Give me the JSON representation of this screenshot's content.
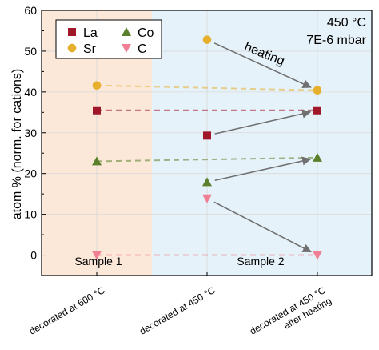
{
  "chart_data": {
    "type": "scatter",
    "ylabel": "atom % (norm. for cations)",
    "ylim": [
      -5,
      60
    ],
    "yticks": [
      0,
      10,
      20,
      30,
      40,
      50,
      60
    ],
    "categories": [
      "decorated at 600 °C",
      "decorated at 450 °C",
      "decorated at 450 °C\nafter heating"
    ],
    "category_lines": [
      [
        "decorated at 600 °C"
      ],
      [
        "decorated at 450 °C"
      ],
      [
        "decorated at 450 °C",
        "after heating"
      ]
    ],
    "annotations": {
      "temperature": "450 °C",
      "pressure": "7E-6 mbar",
      "arrow_label": "heating",
      "region_left": "Sample 1",
      "region_right": "Sample 2"
    },
    "regions": [
      {
        "name": "Sample 1",
        "color": "#fbe8d9"
      },
      {
        "name": "Sample 2",
        "color": "#e6f2f9"
      }
    ],
    "legend_position": "top-left",
    "series": [
      {
        "name": "La",
        "marker": "square",
        "color": "#a0172a",
        "values": [
          35.5,
          29.3,
          35.5
        ]
      },
      {
        "name": "Sr",
        "marker": "circle",
        "color": "#e6b02e",
        "values": [
          41.6,
          52.8,
          40.4
        ]
      },
      {
        "name": "Co",
        "marker": "triangle-up",
        "color": "#5b7f2a",
        "values": [
          23.0,
          17.9,
          23.9
        ]
      },
      {
        "name": "C",
        "marker": "triangle-down",
        "color": "#f07f93",
        "values": [
          0.0,
          13.9,
          0.0
        ]
      }
    ],
    "dashed_links": [
      {
        "series": "La",
        "from": 0,
        "to": 2
      },
      {
        "series": "Sr",
        "from": 0,
        "to": 2
      },
      {
        "series": "Co",
        "from": 0,
        "to": 2
      },
      {
        "series": "C",
        "from": 0,
        "to": 2
      }
    ],
    "arrows": [
      {
        "series": "Sr",
        "from": 1,
        "to": 2
      },
      {
        "series": "La",
        "from": 1,
        "to": 2
      },
      {
        "series": "Co",
        "from": 1,
        "to": 2
      },
      {
        "series": "C",
        "from": 1,
        "to": 2
      }
    ],
    "arrow_color": "#707070"
  }
}
